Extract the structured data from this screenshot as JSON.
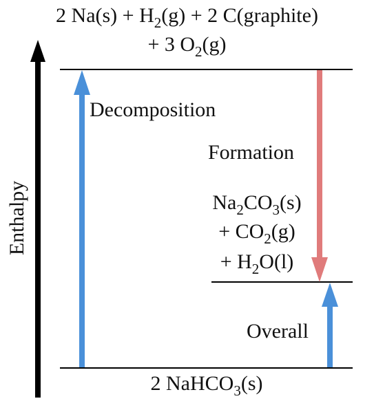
{
  "axis": {
    "label": "Enthalpy"
  },
  "levels": {
    "top": {
      "line1": {
        "parts": [
          {
            "t": "2 Na(s) + H"
          },
          {
            "t": "2",
            "sub": true
          },
          {
            "t": "(g) + 2 C(graphite)"
          }
        ]
      },
      "line2": {
        "parts": [
          {
            "t": "+ 3 O"
          },
          {
            "t": "2",
            "sub": true
          },
          {
            "t": "(g)"
          }
        ]
      }
    },
    "intermediate": {
      "line1": {
        "parts": [
          {
            "t": "Na"
          },
          {
            "t": "2",
            "sub": true
          },
          {
            "t": "CO"
          },
          {
            "t": "3",
            "sub": true
          },
          {
            "t": "(s)"
          }
        ]
      },
      "line2": {
        "parts": [
          {
            "t": "+ CO"
          },
          {
            "t": "2",
            "sub": true
          },
          {
            "t": "(g)"
          }
        ]
      },
      "line3": {
        "parts": [
          {
            "t": "+ H"
          },
          {
            "t": "2",
            "sub": true
          },
          {
            "t": "O(l)"
          }
        ]
      }
    },
    "bottom": {
      "line1": {
        "parts": [
          {
            "t": "2 NaHCO"
          },
          {
            "t": "3",
            "sub": true
          },
          {
            "t": "(s)"
          }
        ]
      }
    }
  },
  "arrows": {
    "decomposition": {
      "label": "Decomposition",
      "color": "#4a90d9"
    },
    "formation": {
      "label": "Formation",
      "color": "#e07b7b"
    },
    "overall": {
      "label": "Overall",
      "color": "#4a90d9"
    }
  },
  "colors": {
    "axis": "#000000",
    "level_line": "#000000"
  }
}
